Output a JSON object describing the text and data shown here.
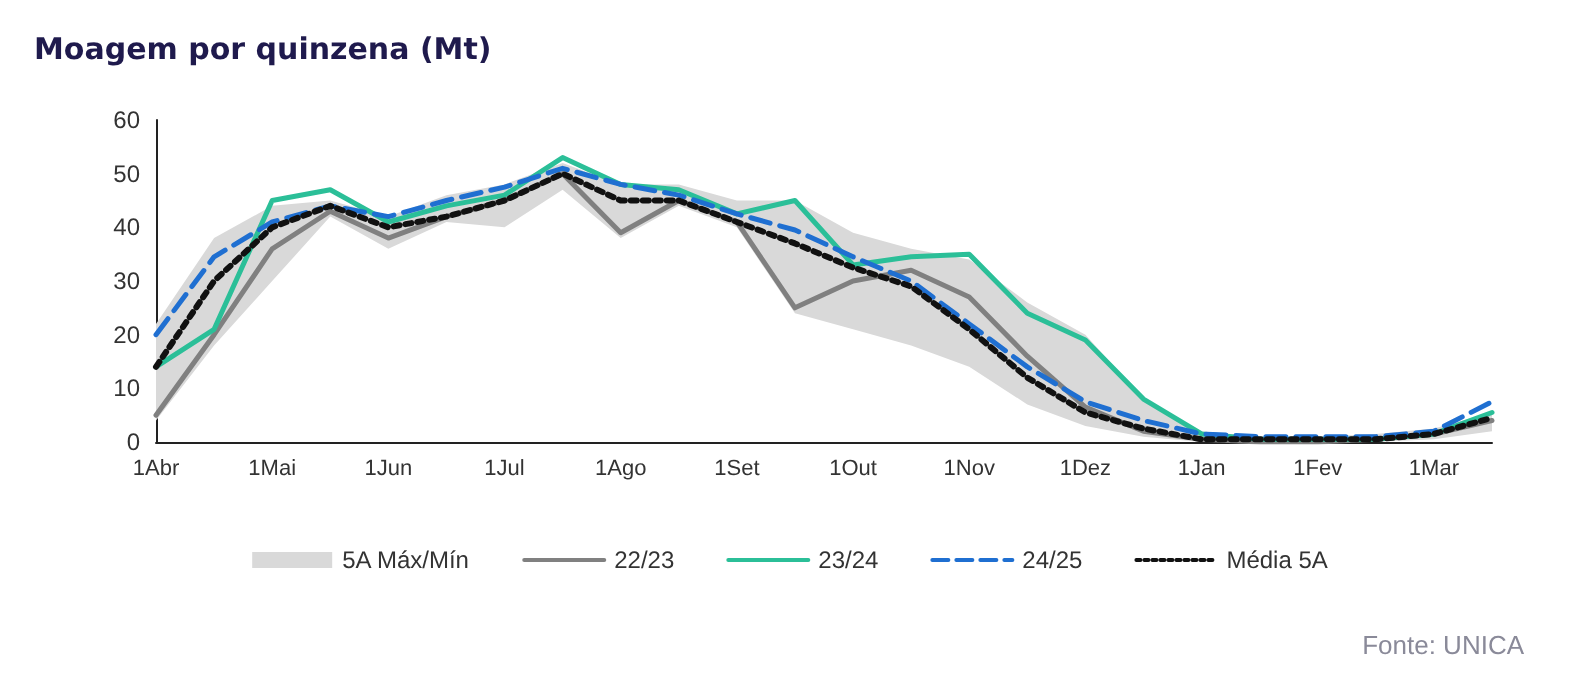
{
  "chart_data": {
    "type": "line",
    "title": "Moagem por quinzena (Mt)",
    "categories": [
      "1Abr",
      null,
      "1Mai",
      null,
      "1Jun",
      null,
      "1Jul",
      null,
      "1Ago",
      null,
      "1Set",
      null,
      "1Out",
      null,
      "1Nov",
      null,
      "1Dez",
      null,
      "1Jan",
      null,
      "1Fev",
      null,
      "1Mar",
      null
    ],
    "series": [
      {
        "name": "5A Máx/Mín",
        "type": "area",
        "color": "#d9d9d9",
        "values": [
          null,
          null,
          null,
          null,
          null,
          null,
          null,
          null,
          null,
          null,
          null,
          null,
          null,
          null,
          null,
          null,
          null,
          null,
          null,
          null,
          null,
          null,
          null,
          null
        ],
        "lower": [
          4,
          18,
          30,
          42,
          36,
          41,
          40,
          47,
          38,
          44,
          40,
          24,
          21,
          18,
          14,
          7,
          3,
          1,
          0,
          0,
          0,
          0,
          0.5,
          2
        ],
        "upper": [
          22,
          38,
          44,
          45,
          42,
          46,
          48,
          52,
          48,
          48,
          45,
          45,
          39,
          36,
          34,
          26,
          20,
          8,
          2,
          1,
          1,
          1.5,
          2.5,
          5.5
        ]
      },
      {
        "name": "22/23",
        "color": "#808080",
        "line_style": "solid",
        "values": [
          5,
          20,
          36,
          43,
          38,
          42,
          45,
          50,
          39,
          45,
          41,
          25,
          30,
          32,
          27,
          16,
          6.5,
          2,
          0.5,
          0,
          0,
          0.5,
          1.5,
          4
        ]
      },
      {
        "name": "23/24",
        "color": "#2bbf98",
        "line_style": "solid",
        "values": [
          14,
          21,
          45,
          47,
          41,
          44,
          46,
          53,
          48,
          47,
          42.5,
          45,
          33,
          34.5,
          35,
          24,
          19,
          8,
          1.5,
          0.5,
          0.5,
          0.5,
          1.5,
          5.5
        ]
      },
      {
        "name": "24/25",
        "color": "#1f6fd1",
        "line_style": "dashed",
        "values": [
          20,
          34.5,
          41,
          44,
          42,
          45,
          47.5,
          51,
          48,
          46,
          42.5,
          39.5,
          34.5,
          30,
          22,
          14,
          7.5,
          4,
          1.5,
          1,
          1,
          1,
          2,
          7.5
        ]
      },
      {
        "name": "Média 5A",
        "color": "#111111",
        "line_style": "dotted",
        "values": [
          14,
          30,
          40,
          44,
          40,
          42,
          45,
          50,
          45,
          45,
          41,
          37,
          32.5,
          29,
          21,
          12,
          5.5,
          2.5,
          0.5,
          0.5,
          0.5,
          0.5,
          1.5,
          4.5
        ]
      }
    ],
    "ylim": [
      0,
      60
    ],
    "yticks": [
      0,
      10,
      20,
      30,
      40,
      50,
      60
    ],
    "grid": false,
    "legend": "bottom",
    "marker": "none",
    "annotations": [
      "Fonte: UNICA"
    ]
  }
}
